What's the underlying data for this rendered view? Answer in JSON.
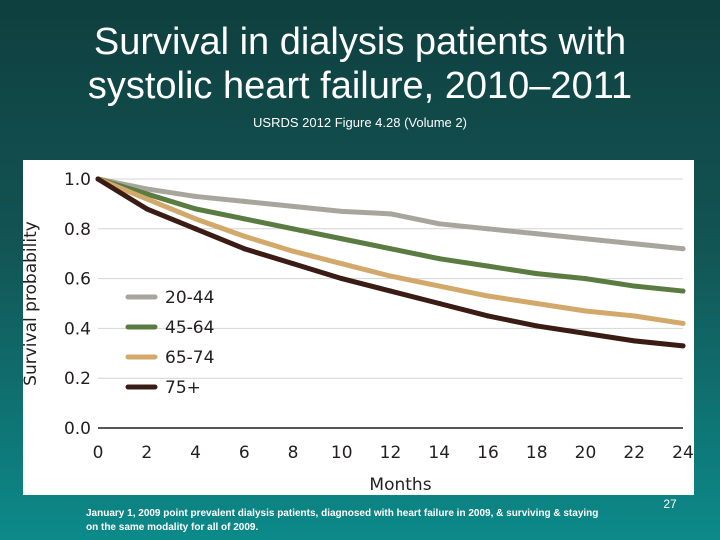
{
  "slide": {
    "title_line1": "Survival in dialysis patients with",
    "title_line2": "systolic heart failure, 2010–2011",
    "subtitle": "USRDS 2012 Figure 4.28 (Volume 2)",
    "footnote": "January 1, 2009 point prevalent dialysis patients, diagnosed with heart failure in 2009, & surviving & staying on the same modality for all of 2009.",
    "page_number": "27"
  },
  "chart_data": {
    "type": "line",
    "xlabel": "Months",
    "ylabel": "Survival probability",
    "xlim": [
      0,
      24
    ],
    "ylim": [
      0,
      1
    ],
    "x_ticks": [
      0,
      2,
      4,
      6,
      8,
      10,
      12,
      14,
      16,
      18,
      20,
      22,
      24
    ],
    "y_tick_labels": [
      "0.0",
      "0.2",
      "0.4",
      "0.6",
      "0.8",
      "1.0"
    ],
    "grid": true,
    "legend_position": "left",
    "x": [
      0,
      2,
      4,
      6,
      8,
      10,
      12,
      14,
      16,
      18,
      20,
      22,
      24
    ],
    "series": [
      {
        "name": "20-44",
        "color": "#a8a69c",
        "values": [
          1.0,
          0.96,
          0.93,
          0.91,
          0.89,
          0.87,
          0.86,
          0.82,
          0.8,
          0.78,
          0.76,
          0.74,
          0.72
        ]
      },
      {
        "name": "45-64",
        "color": "#5a7c41",
        "values": [
          1.0,
          0.94,
          0.88,
          0.84,
          0.8,
          0.76,
          0.72,
          0.68,
          0.65,
          0.62,
          0.6,
          0.57,
          0.55
        ]
      },
      {
        "name": "65-74",
        "color": "#d2a96a",
        "values": [
          1.0,
          0.92,
          0.84,
          0.77,
          0.71,
          0.66,
          0.61,
          0.57,
          0.53,
          0.5,
          0.47,
          0.45,
          0.42
        ]
      },
      {
        "name": "75+",
        "color": "#3a1c14",
        "values": [
          1.0,
          0.88,
          0.8,
          0.72,
          0.66,
          0.6,
          0.55,
          0.5,
          0.45,
          0.41,
          0.38,
          0.35,
          0.33
        ]
      }
    ]
  }
}
